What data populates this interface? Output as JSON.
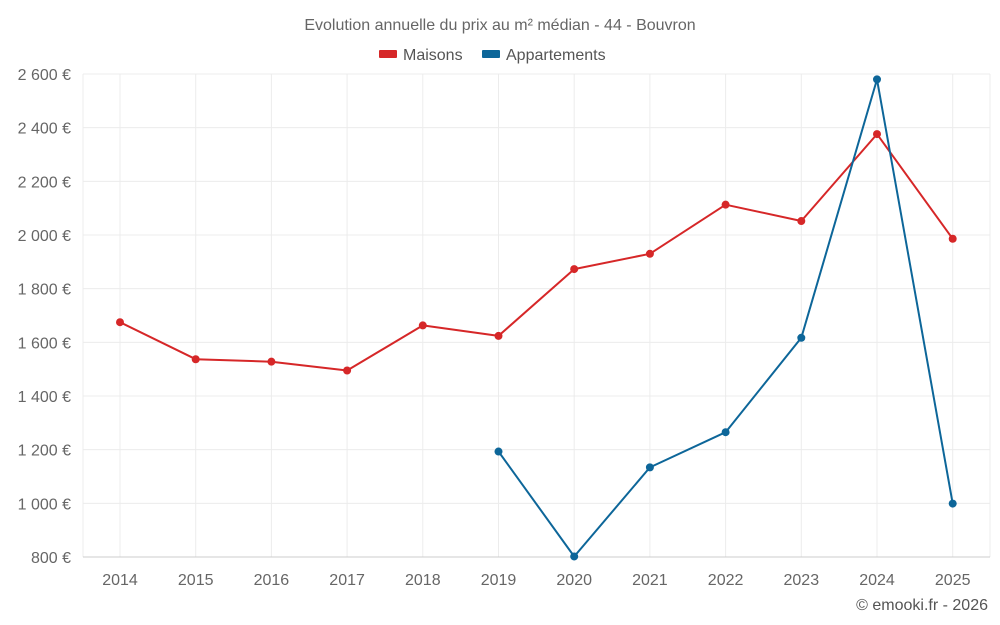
{
  "chart_data": {
    "type": "line",
    "title": "Evolution annuelle du prix au m² médian - 44 - Bouvron",
    "categories": [
      "2014",
      "2015",
      "2016",
      "2017",
      "2018",
      "2019",
      "2020",
      "2021",
      "2022",
      "2023",
      "2024",
      "2025"
    ],
    "series": [
      {
        "name": "Maisons",
        "color": "#d62728",
        "values": [
          1675,
          1537,
          1528,
          1495,
          1663,
          1624,
          1873,
          1930,
          2113,
          2052,
          2376,
          1986
        ]
      },
      {
        "name": "Appartements",
        "color": "#0d6699",
        "values": [
          null,
          null,
          null,
          null,
          null,
          1193,
          802,
          1134,
          1265,
          1617,
          2580,
          999
        ]
      }
    ],
    "ylim": [
      800,
      2600
    ],
    "yticks": [
      800,
      1000,
      1200,
      1400,
      1600,
      1800,
      2000,
      2200,
      2400,
      2600
    ],
    "ytick_labels": [
      "800 €",
      "1 000 €",
      "1 200 €",
      "1 400 €",
      "1 600 €",
      "1 800 €",
      "2 000 €",
      "2 200 €",
      "2 400 €",
      "2 600 €"
    ],
    "xlabel": "",
    "ylabel": "",
    "grid": true,
    "legend": "top-center",
    "credit": "© emooki.fr - 2026"
  }
}
